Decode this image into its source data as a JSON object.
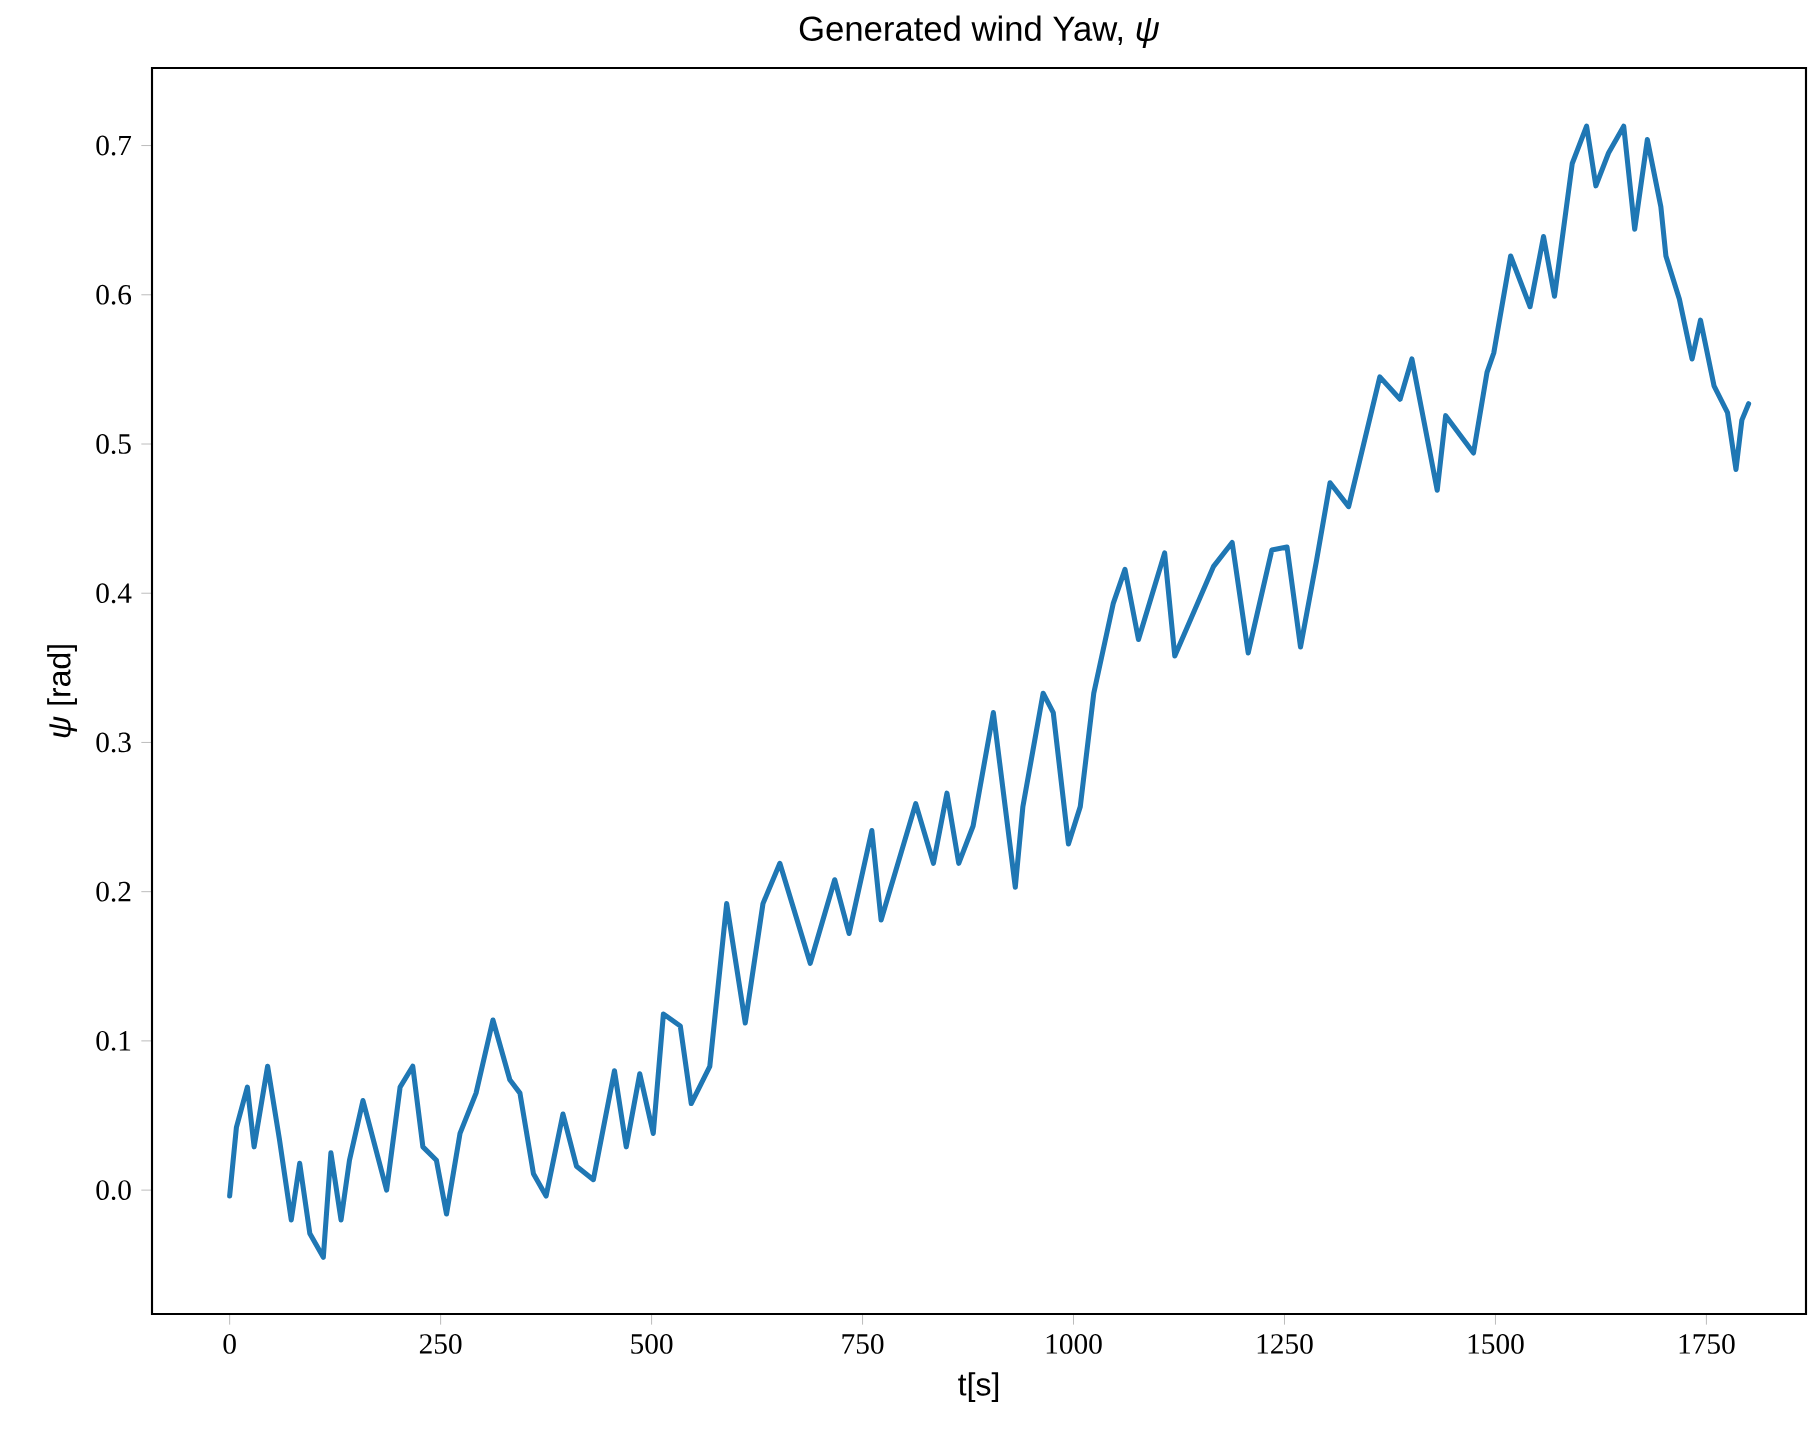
{
  "chart_data": {
    "type": "line",
    "title": "Generated wind Yaw, *ψ*",
    "xlabel": "t[s]",
    "ylabel": "*ψ* [rad]",
    "xlim": [
      -92,
      1868
    ],
    "ylim": [
      -0.083,
      0.752
    ],
    "xticks": [
      0,
      250,
      500,
      750,
      1000,
      1250,
      1500,
      1750
    ],
    "yticks": [
      {
        "value": 0,
        "label": "0.0"
      },
      0.1,
      0.2,
      0.3,
      0.4,
      0.5,
      0.6,
      0.7
    ],
    "grid": false,
    "marker": "none",
    "line_style": "solid",
    "series": [
      {
        "color": "#1f77b4",
        "x": [
          0,
          8,
          21,
          29,
          45,
          59,
          73,
          83,
          95,
          111,
          120,
          132,
          142,
          158,
          186,
          202,
          217,
          229,
          245,
          257,
          273,
          292,
          312,
          332,
          344,
          360,
          375,
          395,
          411,
          431,
          456,
          470,
          486,
          502,
          514,
          534,
          547,
          569,
          589,
          611,
          632,
          652,
          688,
          717,
          734,
          761,
          772,
          813,
          834,
          850,
          864,
          881,
          905,
          931,
          940,
          964,
          976,
          994,
          1008,
          1024,
          1047,
          1061,
          1077,
          1108,
          1120,
          1166,
          1188,
          1207,
          1235,
          1253,
          1269,
          1288,
          1304,
          1326,
          1363,
          1387,
          1401,
          1415,
          1431,
          1441,
          1474,
          1490,
          1498,
          1518,
          1541,
          1557,
          1570,
          1591,
          1608,
          1619,
          1634,
          1652,
          1665,
          1680,
          1696,
          1702,
          1718,
          1733,
          1743,
          1759,
          1775,
          1785,
          1792,
          1800
        ],
        "values": [
          -0.004,
          0.042,
          0.069,
          0.029,
          0.083,
          0.034,
          -0.02,
          0.018,
          -0.029,
          -0.045,
          0.025,
          -0.02,
          0.02,
          0.06,
          0.0,
          0.069,
          0.083,
          0.029,
          0.02,
          -0.016,
          0.038,
          0.065,
          0.114,
          0.074,
          0.065,
          0.011,
          -0.004,
          0.051,
          0.016,
          0.007,
          0.08,
          0.029,
          0.078,
          0.038,
          0.118,
          0.11,
          0.058,
          0.083,
          0.192,
          0.112,
          0.192,
          0.219,
          0.152,
          0.208,
          0.172,
          0.241,
          0.181,
          0.259,
          0.219,
          0.266,
          0.219,
          0.244,
          0.32,
          0.203,
          0.257,
          0.333,
          0.32,
          0.232,
          0.257,
          0.333,
          0.393,
          0.416,
          0.369,
          0.427,
          0.358,
          0.418,
          0.434,
          0.36,
          0.429,
          0.431,
          0.364,
          0.422,
          0.474,
          0.458,
          0.545,
          0.53,
          0.557,
          0.516,
          0.469,
          0.519,
          0.494,
          0.548,
          0.561,
          0.626,
          0.592,
          0.639,
          0.599,
          0.688,
          0.713,
          0.673,
          0.695,
          0.713,
          0.644,
          0.704,
          0.659,
          0.626,
          0.597,
          0.557,
          0.583,
          0.539,
          0.521,
          0.483,
          0.516,
          0.527
        ]
      }
    ]
  }
}
